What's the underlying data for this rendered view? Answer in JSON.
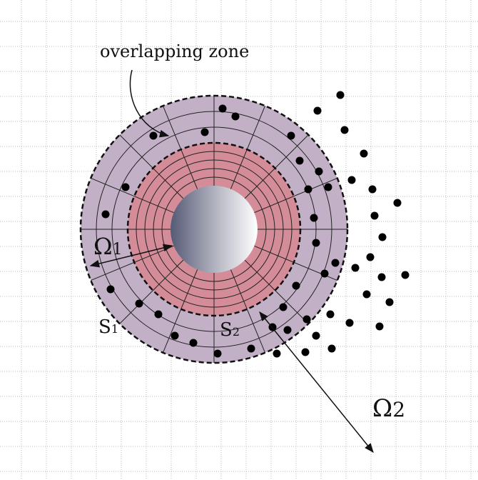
{
  "annotation": "overlapping zone",
  "labels": [
    {
      "symbol": "Ω",
      "subscript": "1"
    },
    {
      "symbol": "S",
      "subscript": "1"
    },
    {
      "symbol": "S",
      "subscript": "2"
    },
    {
      "symbol": "Ω",
      "subscript": "2"
    }
  ]
}
